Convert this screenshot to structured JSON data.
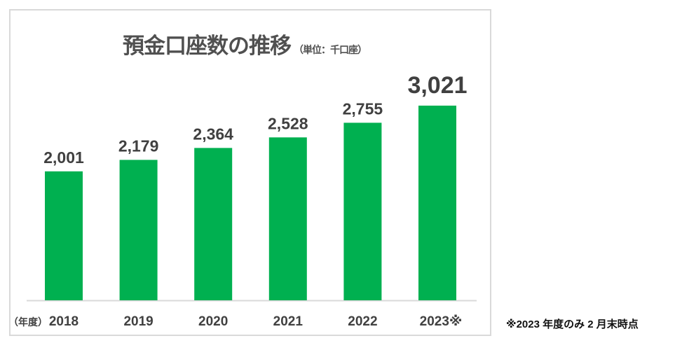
{
  "chart_data": {
    "type": "bar",
    "title": "預金口座数の推移",
    "unit_label": "（単位：千口座）",
    "xlabel": "（年度）",
    "ylabel": "",
    "categories": [
      "2018",
      "2019",
      "2020",
      "2021",
      "2022",
      "2023※"
    ],
    "values": [
      2001,
      2179,
      2364,
      2528,
      2755,
      3021
    ],
    "value_labels": [
      "2,001",
      "2,179",
      "2,364",
      "2,528",
      "2,755",
      "3,021"
    ],
    "ylim": [
      0,
      4660
    ],
    "grid": false,
    "bar_color": "#00b050"
  },
  "footnote": "※2023 年度のみ 2 月末時点"
}
